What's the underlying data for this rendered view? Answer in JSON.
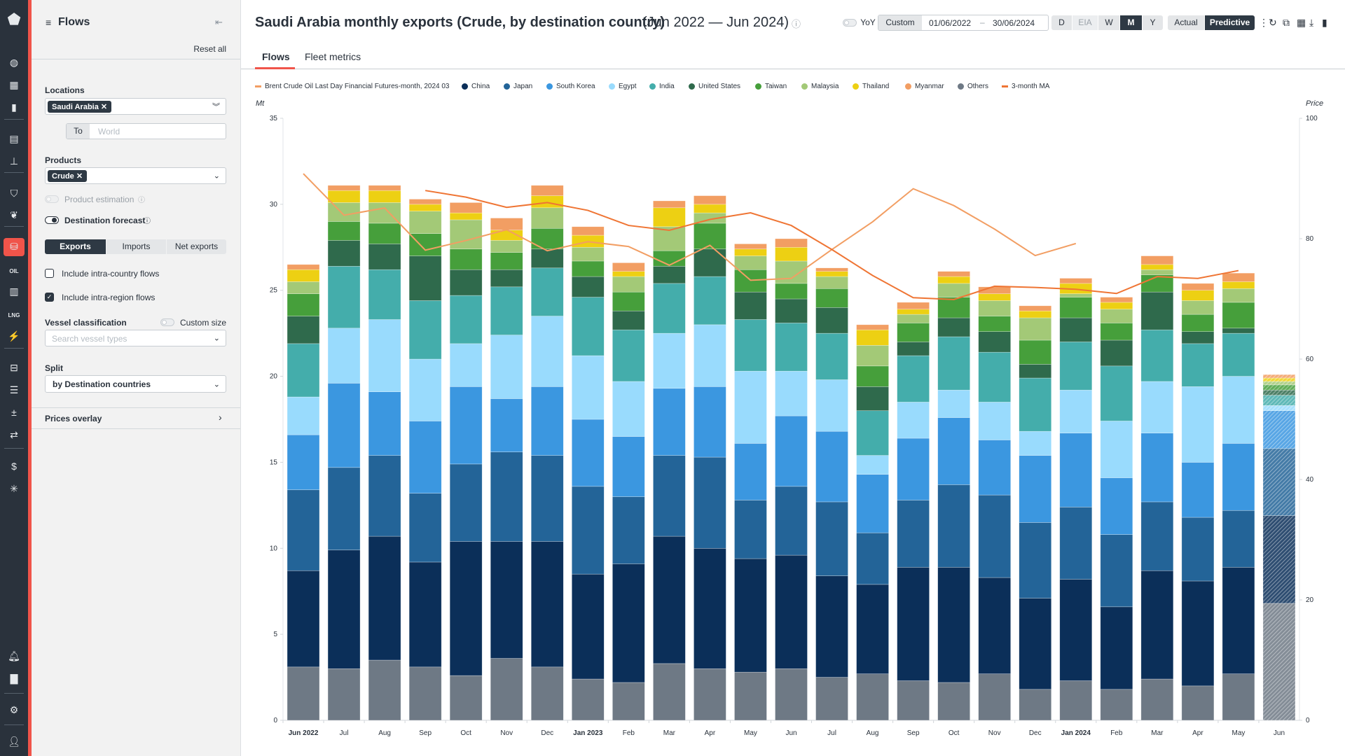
{
  "nav": {
    "items": [
      "logo-icon",
      "globe-icon",
      "dashboard-icon",
      "bookmark-icon",
      "news-icon",
      "analytics-icon",
      "shield-icon",
      "leaf-icon",
      "flows-icon",
      "oil-icon",
      "bar-chart-icon",
      "lng-icon",
      "power-icon",
      "vessel-icon",
      "list-icon",
      "calculator-icon",
      "swap-icon",
      "dollar-icon",
      "asterisk-icon",
      "bell-icon",
      "chat-icon",
      "admin-icon",
      "user-icon"
    ],
    "oil_label": "OIL",
    "lng_label": "LNG"
  },
  "sidebar": {
    "title": "Flows",
    "reset": "Reset all",
    "locations_label": "Locations",
    "location_chip": "Saudi Arabia",
    "to_label": "To",
    "to_placeholder": "World",
    "products_label": "Products",
    "product_chip": "Crude",
    "product_estimation": "Product estimation",
    "product_estimation_on": false,
    "destination_forecast": "Destination forecast",
    "destination_forecast_on": true,
    "segments": [
      "Exports",
      "Imports",
      "Net exports"
    ],
    "segment_selected": "Exports",
    "intra_country": "Include intra-country flows",
    "intra_country_checked": false,
    "intra_region": "Include intra-region flows",
    "intra_region_checked": true,
    "vessel_label": "Vessel classification",
    "custom_size": "Custom size",
    "vessel_placeholder": "Search vessel types",
    "split_label": "Split",
    "split_value": "by Destination countries",
    "prices_overlay": "Prices overlay"
  },
  "header": {
    "title": "Saudi Arabia monthly exports (Crude, by destination country)",
    "range": "(Jun 2022 — Jun 2024)",
    "yoy": "YoY",
    "custom": "Custom",
    "date_from": "01/06/2022",
    "date_sep": "–",
    "date_to": "30/06/2024",
    "granularity": [
      "D",
      "EIA",
      "W",
      "M",
      "Y"
    ],
    "granularity_selected": "M",
    "modes": [
      "Actual",
      "Predictive"
    ],
    "mode_selected": "Predictive"
  },
  "tabs": [
    {
      "label": "Flows",
      "active": true
    },
    {
      "label": "Fleet metrics",
      "active": false
    }
  ],
  "chart_data": {
    "type": "bar",
    "stacked": true,
    "ylabel": "Mt",
    "y2label": "Price",
    "ylim": [
      0,
      35
    ],
    "y2lim": [
      0,
      100
    ],
    "yticks": [
      "0",
      "5",
      "10",
      "15",
      "20",
      "25",
      "30",
      "35"
    ],
    "y2ticks": [
      "0",
      "20",
      "40",
      "60",
      "80",
      "100"
    ],
    "grid": false,
    "legend": "top-left",
    "categories": [
      "Jun 2022",
      "Jul",
      "Aug",
      "Sep",
      "Oct",
      "Nov",
      "Dec",
      "Jan 2023",
      "Feb",
      "Mar",
      "Apr",
      "May",
      "Jun",
      "Jul",
      "Aug",
      "Sep",
      "Oct",
      "Nov",
      "Dec",
      "Jan 2024",
      "Feb",
      "Mar",
      "Apr",
      "May",
      "Jun"
    ],
    "bold_categories": [
      "Jun 2022",
      "Jan 2023",
      "Jan 2024"
    ],
    "predictive_last_bar": true,
    "series": [
      {
        "name": "Others",
        "color": "#6e7985",
        "values": [
          3.1,
          3.0,
          3.5,
          3.1,
          2.6,
          3.6,
          3.1,
          2.4,
          2.2,
          3.3,
          3.0,
          2.8,
          3.0,
          2.5,
          2.7,
          2.3,
          2.2,
          2.7,
          1.8,
          2.3,
          1.8,
          2.4,
          2.0,
          2.7,
          6.8
        ]
      },
      {
        "name": "China",
        "color": "#0b2f59",
        "values": [
          5.6,
          6.9,
          7.2,
          6.1,
          7.8,
          6.8,
          7.3,
          6.1,
          6.9,
          7.4,
          7.0,
          6.6,
          6.6,
          5.9,
          5.2,
          6.6,
          6.7,
          5.6,
          5.3,
          5.9,
          4.8,
          6.3,
          6.1,
          6.2,
          5.1
        ]
      },
      {
        "name": "Japan",
        "color": "#236498",
        "values": [
          4.7,
          4.8,
          4.7,
          4.0,
          4.5,
          5.2,
          5.0,
          5.1,
          3.9,
          4.7,
          5.3,
          3.4,
          4.0,
          4.3,
          3.0,
          3.9,
          4.8,
          4.8,
          4.4,
          4.2,
          4.2,
          4.0,
          3.7,
          3.3,
          3.9
        ]
      },
      {
        "name": "South Korea",
        "color": "#3b97e0",
        "values": [
          3.2,
          4.9,
          3.7,
          4.2,
          4.5,
          3.1,
          4.0,
          3.9,
          3.5,
          3.9,
          4.1,
          3.3,
          4.1,
          4.1,
          3.4,
          3.6,
          3.9,
          3.2,
          3.9,
          4.3,
          3.3,
          4.0,
          3.2,
          3.9,
          2.2
        ]
      },
      {
        "name": "Egypt",
        "color": "#99dbfd",
        "values": [
          2.2,
          3.2,
          4.2,
          3.6,
          2.5,
          3.7,
          4.1,
          3.7,
          3.2,
          3.2,
          3.6,
          4.2,
          2.6,
          3.0,
          1.1,
          2.1,
          1.6,
          2.2,
          1.4,
          2.5,
          3.3,
          3.0,
          4.4,
          3.9,
          0.3
        ]
      },
      {
        "name": "India",
        "color": "#44adab",
        "values": [
          3.1,
          3.6,
          2.9,
          3.4,
          2.8,
          2.8,
          2.8,
          3.4,
          3.0,
          2.9,
          2.8,
          3.0,
          2.8,
          2.7,
          2.6,
          2.7,
          3.1,
          2.9,
          3.1,
          2.8,
          3.2,
          3.0,
          2.5,
          2.5,
          0.6
        ]
      },
      {
        "name": "United States",
        "color": "#2f6a4c",
        "values": [
          1.6,
          1.5,
          1.5,
          2.6,
          1.5,
          1.0,
          1.1,
          1.2,
          1.1,
          1.0,
          1.6,
          1.6,
          1.4,
          1.5,
          1.4,
          0.8,
          1.1,
          1.2,
          0.8,
          1.4,
          1.5,
          2.2,
          0.7,
          0.3,
          0.3
        ]
      },
      {
        "name": "Taiwan",
        "color": "#469f3b",
        "values": [
          1.3,
          1.1,
          1.2,
          1.3,
          1.2,
          1.0,
          1.2,
          0.9,
          1.1,
          0.9,
          1.5,
          1.3,
          0.9,
          1.1,
          1.2,
          1.1,
          1.2,
          0.9,
          1.4,
          1.2,
          1.0,
          1.0,
          1.0,
          1.5,
          0.3
        ]
      },
      {
        "name": "Malaysia",
        "color": "#a3c977",
        "values": [
          0.7,
          1.1,
          1.2,
          1.3,
          1.7,
          0.7,
          1.2,
          0.8,
          0.9,
          1.4,
          0.6,
          0.8,
          1.3,
          0.7,
          1.2,
          0.5,
          0.8,
          0.9,
          1.3,
          0.2,
          0.8,
          0.3,
          0.8,
          0.8,
          0.2
        ]
      },
      {
        "name": "Thailand",
        "color": "#edd013",
        "values": [
          0.7,
          0.7,
          0.7,
          0.4,
          0.4,
          0.6,
          0.7,
          0.7,
          0.3,
          1.1,
          0.5,
          0.4,
          0.8,
          0.3,
          0.9,
          0.3,
          0.4,
          0.4,
          0.4,
          0.6,
          0.4,
          0.3,
          0.6,
          0.4,
          0.2
        ]
      },
      {
        "name": "Myanmar",
        "color": "#f29e63",
        "values": [
          0.3,
          0.3,
          0.3,
          0.3,
          0.6,
          0.7,
          0.6,
          0.5,
          0.5,
          0.4,
          0.5,
          0.3,
          0.5,
          0.2,
          0.3,
          0.4,
          0.3,
          0.4,
          0.3,
          0.3,
          0.3,
          0.5,
          0.4,
          0.5,
          0.2
        ]
      }
    ],
    "lines": [
      {
        "name": "Brent Crude Oil Last Day Financial Futures-month, 2024 03",
        "color": "#f29e63",
        "axis": "right",
        "values": [
          90.8,
          83.9,
          85.1,
          78.1,
          79.7,
          81.5,
          78.0,
          79.5,
          78.7,
          75.6,
          78.9,
          73.1,
          73.4,
          78.2,
          82.8,
          88.3,
          85.5,
          81.6,
          77.2,
          79.2,
          null,
          null,
          null,
          null,
          null
        ]
      },
      {
        "name": "3-month MA",
        "color": "#ef7534",
        "axis": "right",
        "values": [
          null,
          null,
          null,
          88.0,
          86.9,
          85.2,
          86.0,
          84.7,
          82.2,
          81.4,
          83.2,
          84.3,
          82.2,
          78.2,
          73.9,
          70.2,
          69.9,
          72.1,
          71.9,
          71.6,
          70.9,
          73.7,
          73.4,
          74.7,
          null
        ]
      }
    ],
    "legend_order": [
      "Brent Crude Oil Last Day Financial Futures-month, 2024 03",
      "China",
      "Japan",
      "South Korea",
      "Egypt",
      "India",
      "United States",
      "Taiwan",
      "Malaysia",
      "Thailand",
      "Myanmar",
      "Others",
      "3-month MA"
    ]
  }
}
